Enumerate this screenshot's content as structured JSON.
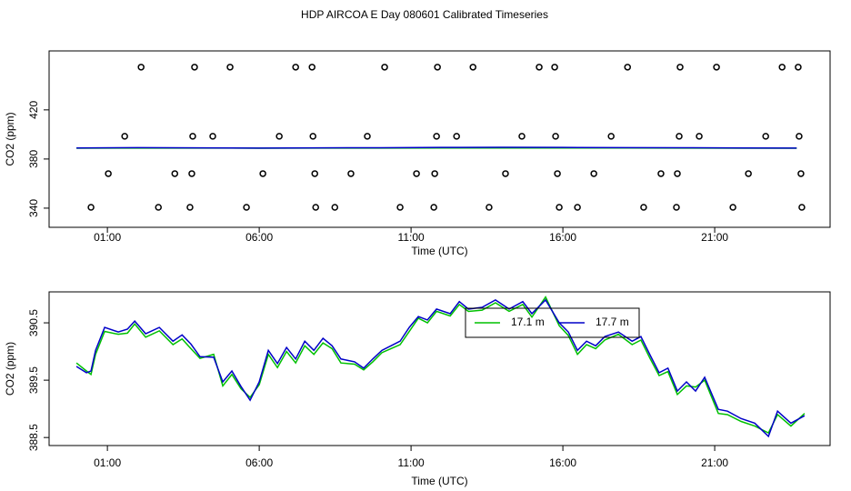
{
  "chart_data": [
    {
      "type": "scatter",
      "title": "HDP AIRCOA E  Day 080601  Calibrated Timeseries",
      "x_label": "Time (UTC)",
      "y_label": "CO2 (ppm)",
      "xlim": [
        -0.92,
        24.8
      ],
      "xticks": [
        {
          "value": 1,
          "label": "01:00"
        },
        {
          "value": 6,
          "label": "06:00"
        },
        {
          "value": 11,
          "label": "11:00"
        },
        {
          "value": 16,
          "label": "16:00"
        },
        {
          "value": 21,
          "label": "21:00"
        }
      ],
      "ylim": [
        324.4,
        468
      ],
      "yticks": [
        340,
        380,
        420
      ],
      "series": [
        {
          "type": "scatter",
          "color": "#000000",
          "x": [
            2.11,
            3.87,
            5.04,
            7.2,
            7.74,
            10.13,
            11.87,
            13.04,
            15.22,
            15.73,
            18.13,
            19.86,
            21.06,
            23.22,
            23.75,
            1.57,
            3.81,
            4.47,
            6.66,
            7.77,
            9.56,
            11.84,
            12.5,
            14.65,
            15.76,
            17.59,
            19.83,
            20.49,
            22.68,
            23.78,
            1.03,
            3.22,
            3.78,
            6.12,
            7.83,
            9.02,
            11.18,
            11.78,
            14.11,
            15.82,
            17.02,
            19.23,
            19.77,
            22.11,
            23.84,
            0.46,
            2.68,
            3.72,
            5.58,
            7.86,
            8.49,
            10.64,
            11.75,
            13.57,
            15.88,
            16.48,
            18.66,
            19.74,
            21.6,
            23.87
          ],
          "values": [
            454.8,
            454.8,
            454.8,
            454.8,
            454.8,
            454.8,
            454.8,
            454.8,
            454.8,
            454.8,
            454.8,
            454.8,
            454.8,
            454.8,
            454.8,
            398.5,
            398.5,
            398.5,
            398.5,
            398.5,
            398.5,
            398.5,
            398.5,
            398.5,
            398.5,
            398.5,
            398.5,
            398.5,
            398.5,
            398.5,
            368.1,
            368.1,
            368.1,
            368.1,
            368.1,
            368.1,
            368.1,
            368.1,
            368.1,
            368.1,
            368.1,
            368.1,
            368.1,
            368.1,
            368.1,
            340.7,
            340.7,
            340.7,
            340.7,
            340.7,
            340.7,
            340.7,
            340.7,
            340.7,
            340.7,
            340.7,
            340.7,
            340.7,
            340.7,
            340.7
          ]
        },
        {
          "type": "line",
          "color": "#00c000",
          "x": [
            -0.02,
            2,
            4,
            6,
            8,
            10,
            12,
            14,
            16,
            18,
            20,
            22,
            23.7
          ],
          "values": [
            388.8,
            388.9,
            388.9,
            388.8,
            388.9,
            388.9,
            389.0,
            389.0,
            389.0,
            389.0,
            388.9,
            388.8,
            388.8
          ]
        },
        {
          "type": "line",
          "color": "#0000c8",
          "x": [
            -0.02,
            2,
            4,
            6,
            8,
            10,
            12,
            14,
            16,
            18,
            20,
            22,
            23.7
          ],
          "values": [
            389.0,
            389.3,
            389.1,
            388.9,
            389.1,
            389.2,
            389.4,
            389.5,
            389.4,
            389.3,
            389.2,
            389.0,
            388.9
          ]
        }
      ]
    },
    {
      "type": "line",
      "x_label": "Time (UTC)",
      "y_label": "CO2 (ppm)",
      "xlim": [
        -0.92,
        24.8
      ],
      "xticks": [
        {
          "value": 1,
          "label": "01:00"
        },
        {
          "value": 6,
          "label": "06:00"
        },
        {
          "value": 11,
          "label": "11:00"
        },
        {
          "value": 16,
          "label": "16:00"
        },
        {
          "value": 21,
          "label": "21:00"
        }
      ],
      "ylim": [
        388.36,
        391.04
      ],
      "yticks": [
        388.5,
        389.5,
        390.5
      ],
      "legend": "top",
      "x": [
        -0.02,
        0.31,
        0.46,
        0.61,
        0.91,
        1.36,
        1.66,
        1.9,
        2.26,
        2.71,
        3.16,
        3.46,
        3.75,
        4.05,
        4.5,
        4.8,
        5.1,
        5.4,
        5.7,
        6.0,
        6.3,
        6.6,
        6.9,
        7.2,
        7.5,
        7.8,
        8.1,
        8.4,
        8.69,
        9.14,
        9.44,
        9.74,
        10.04,
        10.34,
        10.64,
        10.94,
        11.24,
        11.54,
        11.84,
        12.29,
        12.59,
        12.89,
        13.34,
        13.78,
        14.23,
        14.68,
        14.98,
        15.43,
        15.88,
        16.18,
        16.48,
        16.78,
        17.08,
        17.38,
        17.83,
        18.28,
        18.57,
        18.87,
        19.17,
        19.46,
        19.77,
        20.07,
        20.37,
        20.67,
        21.12,
        21.42,
        21.87,
        22.32,
        22.77,
        23.07,
        23.51,
        23.96
      ],
      "series": [
        {
          "name": "17.1 m",
          "color": "#00c000",
          "values": [
            389.8,
            389.66,
            389.6,
            389.95,
            390.35,
            390.3,
            390.32,
            390.48,
            390.25,
            390.36,
            390.12,
            390.22,
            390.05,
            389.88,
            389.95,
            389.4,
            389.6,
            389.35,
            389.2,
            389.42,
            389.95,
            389.72,
            390.0,
            389.8,
            390.1,
            389.95,
            390.15,
            390.05,
            389.8,
            389.78,
            389.68,
            389.82,
            389.98,
            390.05,
            390.12,
            390.35,
            390.58,
            390.5,
            390.7,
            390.62,
            390.82,
            390.7,
            390.72,
            390.85,
            390.7,
            390.82,
            390.6,
            390.95,
            390.45,
            390.28,
            389.95,
            390.12,
            390.05,
            390.2,
            390.3,
            390.12,
            390.2,
            389.88,
            389.58,
            389.65,
            389.25,
            389.4,
            389.38,
            389.5,
            388.92,
            388.9,
            388.78,
            388.7,
            388.58,
            388.9,
            388.7,
            388.92
          ]
        },
        {
          "name": "17.7 m",
          "color": "#0000c8",
          "values": [
            389.74,
            389.63,
            389.66,
            390.02,
            390.42,
            390.34,
            390.39,
            390.53,
            390.31,
            390.42,
            390.18,
            390.29,
            390.13,
            389.91,
            389.9,
            389.47,
            389.66,
            389.39,
            389.15,
            389.47,
            390.02,
            389.79,
            390.07,
            389.87,
            390.18,
            390.02,
            390.23,
            390.1,
            389.87,
            389.82,
            389.71,
            389.87,
            390.02,
            390.1,
            390.18,
            390.42,
            390.61,
            390.55,
            390.74,
            390.66,
            390.87,
            390.74,
            390.77,
            390.9,
            390.74,
            390.87,
            390.66,
            390.9,
            390.5,
            390.34,
            390.02,
            390.18,
            390.1,
            390.26,
            390.34,
            390.18,
            390.26,
            389.94,
            389.63,
            389.71,
            389.31,
            389.47,
            389.31,
            389.55,
            388.99,
            388.96,
            388.83,
            388.75,
            388.52,
            388.96,
            388.75,
            388.88
          ]
        }
      ]
    }
  ]
}
